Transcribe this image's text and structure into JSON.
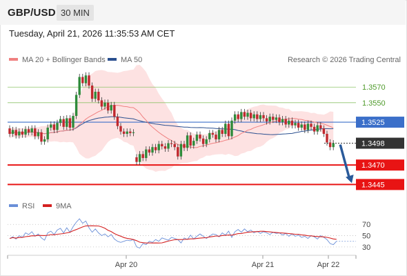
{
  "header": {
    "symbol": "GBP/USD",
    "timeframe": "30 MIN"
  },
  "datetime": "Tuesday, April 21, 2026 11:35:53 AM CET",
  "legend": {
    "ma_bb": "MA 20 + Bollinger Bands",
    "ma50": "MA 50",
    "credit": "Research © 2026 Trading Central"
  },
  "rsi_legend": {
    "rsi": "RSI",
    "ma": "9MA"
  },
  "colors": {
    "ma_bb": "#f08080",
    "ma50": "#2a4f8f",
    "band_fill": "#fde2e2",
    "up": "#2e8b3a",
    "down": "#c0282e",
    "rsi": "#6a8fd8",
    "rsi_ma": "#d42020",
    "green_level": "#8ec46a",
    "red_level": "#e81414",
    "pivot_level": "#3b6fc9",
    "arrow": "#2a5a9a",
    "current": "#333333"
  },
  "chart_data": {
    "type": "candlestick",
    "x_ticks": [
      "Apr 20",
      "Apr 21",
      "Apr 22"
    ],
    "ylim": [
      1.3425,
      1.3595
    ],
    "levels": [
      {
        "value": 1.357,
        "label": "1.3570",
        "kind": "resistance"
      },
      {
        "value": 1.355,
        "label": "1.3550",
        "kind": "resistance"
      },
      {
        "value": 1.3525,
        "label": "1.3525",
        "kind": "pivot"
      },
      {
        "value": 1.3498,
        "label": "1.3498",
        "kind": "current"
      },
      {
        "value": 1.347,
        "label": "1.3470",
        "kind": "support"
      },
      {
        "value": 1.3445,
        "label": "1.3445",
        "kind": "support"
      }
    ],
    "forecast": {
      "from": 1.3498,
      "to": 1.3445
    },
    "candles": [
      [
        1.3517,
        1.351
      ],
      [
        1.351,
        1.3515
      ],
      [
        1.3515,
        1.3508
      ],
      [
        1.3508,
        1.3513
      ],
      [
        1.3513,
        1.3509
      ],
      [
        1.3509,
        1.3516
      ],
      [
        1.3516,
        1.3512
      ],
      [
        1.3512,
        1.3517
      ],
      [
        1.3517,
        1.3507
      ],
      [
        1.3507,
        1.3512
      ],
      [
        1.3512,
        1.35
      ],
      [
        1.35,
        1.3503
      ],
      [
        1.3503,
        1.3518
      ],
      [
        1.3518,
        1.3522
      ],
      [
        1.3522,
        1.3515
      ],
      [
        1.3515,
        1.3524
      ],
      [
        1.3524,
        1.3529
      ],
      [
        1.3529,
        1.3519
      ],
      [
        1.3519,
        1.353
      ],
      [
        1.353,
        1.3518
      ],
      [
        1.3518,
        1.3533
      ],
      [
        1.3533,
        1.356
      ],
      [
        1.356,
        1.3583
      ],
      [
        1.3583,
        1.3575
      ],
      [
        1.3575,
        1.3585
      ],
      [
        1.3585,
        1.3572
      ],
      [
        1.3572,
        1.3555
      ],
      [
        1.3555,
        1.3564
      ],
      [
        1.3564,
        1.3553
      ],
      [
        1.3553,
        1.3545
      ],
      [
        1.3545,
        1.355
      ],
      [
        1.355,
        1.354
      ],
      [
        1.354,
        1.3547
      ],
      [
        1.3547,
        1.3532
      ],
      [
        1.3532,
        1.352
      ],
      [
        1.352,
        1.3513
      ],
      [
        1.3513,
        1.351
      ],
      [
        1.351,
        1.3513
      ],
      [
        1.3513,
        1.3511
      ],
      [
        1.3511,
        1.3512
      ],
      [
        1.348,
        1.3474
      ],
      [
        1.3474,
        1.3484
      ],
      [
        1.3484,
        1.3479
      ],
      [
        1.3479,
        1.349
      ],
      [
        1.349,
        1.3486
      ],
      [
        1.3486,
        1.3493
      ],
      [
        1.3493,
        1.3489
      ],
      [
        1.3489,
        1.3497
      ],
      [
        1.3497,
        1.3494
      ],
      [
        1.3494,
        1.3491
      ],
      [
        1.3491,
        1.3498
      ],
      [
        1.3498,
        1.3497
      ],
      [
        1.3497,
        1.3493
      ],
      [
        1.3493,
        1.3481
      ],
      [
        1.3481,
        1.3497
      ],
      [
        1.3497,
        1.3492
      ],
      [
        1.3492,
        1.3508
      ],
      [
        1.3508,
        1.3495
      ],
      [
        1.3495,
        1.3501
      ],
      [
        1.3501,
        1.3509
      ],
      [
        1.3509,
        1.3504
      ],
      [
        1.3504,
        1.3497
      ],
      [
        1.3497,
        1.3503
      ],
      [
        1.3503,
        1.3511
      ],
      [
        1.3511,
        1.3509
      ],
      [
        1.3509,
        1.3503
      ],
      [
        1.3503,
        1.3515
      ],
      [
        1.3515,
        1.351
      ],
      [
        1.351,
        1.3523
      ],
      [
        1.3523,
        1.3507
      ],
      [
        1.3507,
        1.3527
      ],
      [
        1.3527,
        1.3535
      ],
      [
        1.3535,
        1.3529
      ],
      [
        1.3529,
        1.3538
      ],
      [
        1.3538,
        1.3532
      ],
      [
        1.3532,
        1.3537
      ],
      [
        1.3537,
        1.353
      ],
      [
        1.353,
        1.3535
      ],
      [
        1.3535,
        1.3529
      ],
      [
        1.3529,
        1.3534
      ],
      [
        1.3534,
        1.353
      ],
      [
        1.353,
        1.3526
      ],
      [
        1.3526,
        1.3532
      ],
      [
        1.3532,
        1.3528
      ],
      [
        1.3528,
        1.3531
      ],
      [
        1.3531,
        1.3525
      ],
      [
        1.3525,
        1.3529
      ],
      [
        1.3529,
        1.3522
      ],
      [
        1.3522,
        1.3527
      ],
      [
        1.3527,
        1.3521
      ],
      [
        1.3521,
        1.3524
      ],
      [
        1.3524,
        1.3518
      ],
      [
        1.3518,
        1.3522
      ],
      [
        1.3522,
        1.3515
      ],
      [
        1.3515,
        1.3523
      ],
      [
        1.3523,
        1.3519
      ],
      [
        1.3519,
        1.3513
      ],
      [
        1.3513,
        1.3521
      ],
      [
        1.3521,
        1.3517
      ],
      [
        1.3517,
        1.351
      ],
      [
        1.351,
        1.3499
      ],
      [
        1.3499,
        1.3493
      ],
      [
        1.3493,
        1.3498
      ]
    ],
    "rsi": {
      "ylim": [
        20,
        85
      ],
      "ticks": [
        70,
        50,
        30
      ],
      "values": [
        45,
        48,
        44,
        50,
        47,
        55,
        52,
        57,
        49,
        53,
        46,
        42,
        55,
        58,
        52,
        60,
        63,
        55,
        64,
        56,
        66,
        74,
        80,
        72,
        76,
        64,
        56,
        62,
        55,
        50,
        53,
        48,
        52,
        44,
        40,
        38,
        40,
        42,
        41,
        43,
        30,
        28,
        36,
        34,
        40,
        38,
        43,
        40,
        46,
        44,
        42,
        47,
        45,
        43,
        37,
        46,
        43,
        51,
        44,
        49,
        53,
        49,
        45,
        49,
        53,
        52,
        48,
        55,
        51,
        58,
        47,
        57,
        61,
        56,
        62,
        57,
        60,
        55,
        58,
        54,
        57,
        55,
        52,
        56,
        54,
        55,
        51,
        54,
        49,
        53,
        49,
        51,
        47,
        49,
        45,
        50,
        48,
        44,
        50,
        47,
        43,
        36,
        34,
        40
      ]
    }
  }
}
